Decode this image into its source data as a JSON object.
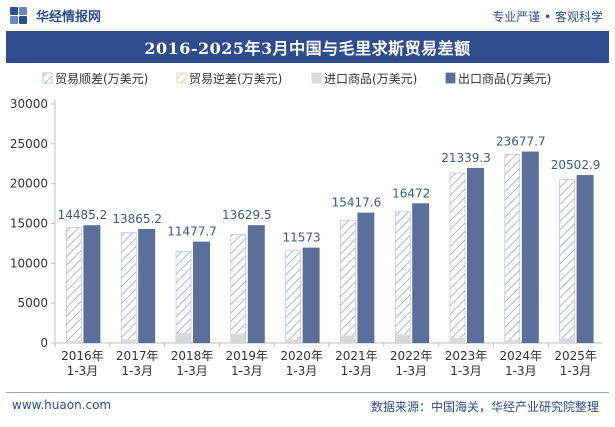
{
  "header": {
    "brand_name": "华经情报网",
    "slogan": "专业严谨 • 客观科学"
  },
  "title": "2016-2025年3月中国与毛里求斯贸易差额",
  "footer": {
    "website": "www.huaon.com",
    "source": "数据来源：中国海关，华经产业研究院整理"
  },
  "colors": {
    "brand": "#2f4e8f",
    "surplus_hatch": "#a9b9d3",
    "deficit_hatch": "#e7d39a",
    "import": "#d9d9d9",
    "export": "#5b6f9b",
    "label": "#3b5a85"
  },
  "chart_data": {
    "type": "bar",
    "categories": [
      "2016年\n1-3月",
      "2017年\n1-3月",
      "2018年\n1-3月",
      "2019年\n1-3月",
      "2020年\n1-3月",
      "2021年\n1-3月",
      "2022年\n1-3月",
      "2023年\n1-3月",
      "2024年\n1-3月",
      "2025年\n1-3月"
    ],
    "ylim": [
      0,
      30000
    ],
    "yticks": [
      0,
      5000,
      10000,
      15000,
      20000,
      25000,
      30000
    ],
    "legend_position": "top",
    "grid": false,
    "series": [
      {
        "name": "贸易顺差(万美元)",
        "values": [
          14485.2,
          13865.2,
          11477.7,
          13629.5,
          11573,
          15417.6,
          16472,
          21339.3,
          23677.7,
          20502.9
        ],
        "labels": [
          "14485.2",
          "13865.2",
          "11477.7",
          "13629.5",
          "11573",
          "15417.6",
          "16472",
          "21339.3",
          "23677.7",
          "20502.9"
        ]
      },
      {
        "name": "贸易逆差(万美元)",
        "values": [
          0,
          0,
          0,
          0,
          0,
          0,
          0,
          0,
          0,
          0
        ]
      },
      {
        "name": "进口商品(万美元)",
        "values": [
          300,
          460,
          1250,
          1160,
          400,
          950,
          1060,
          640,
          350,
          580
        ]
      },
      {
        "name": "出口商品(万美元)",
        "values": [
          14785,
          14325,
          12728,
          14790,
          11973,
          16368,
          17532,
          21979,
          24028,
          21083
        ]
      }
    ]
  }
}
